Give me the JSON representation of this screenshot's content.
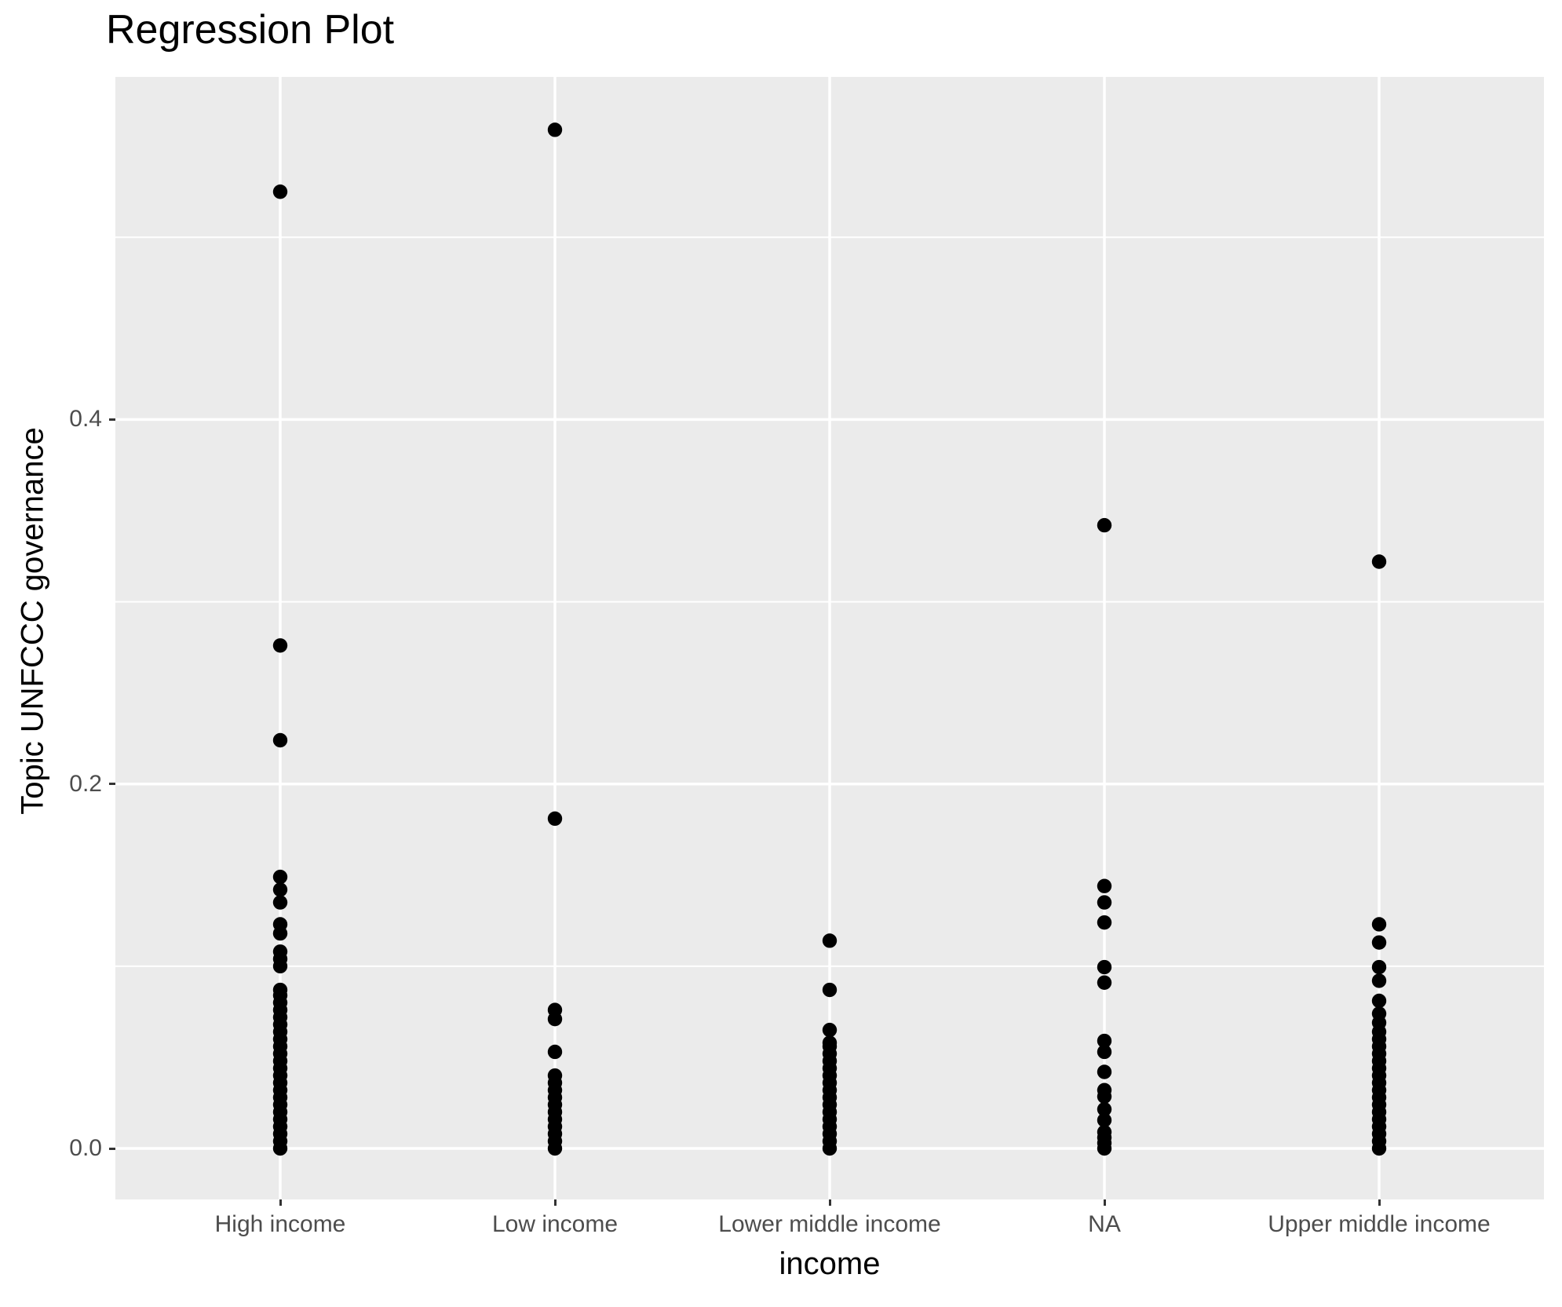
{
  "title": "Regression Plot",
  "chart_data": {
    "type": "scatter",
    "title": "Regression Plot",
    "xlabel": "income",
    "ylabel": "Topic UNFCCC governance",
    "categories": [
      "High income",
      "Low income",
      "Lower middle income",
      "NA",
      "Upper middle income"
    ],
    "y_axis": {
      "tick_labels": [
        "0.0",
        "0.2",
        "0.4"
      ],
      "tick_values": [
        0.0,
        0.2,
        0.4
      ],
      "minor_tick_values": [
        0.1,
        0.3,
        0.5
      ],
      "range": [
        -0.028,
        0.588
      ]
    },
    "legend_position": "none",
    "grid": "on",
    "series": [
      {
        "category": "High income",
        "values": [
          0,
          0.004,
          0.008,
          0.012,
          0.016,
          0.02,
          0.024,
          0.028,
          0.032,
          0.036,
          0.04,
          0.044,
          0.048,
          0.052,
          0.056,
          0.06,
          0.064,
          0.068,
          0.072,
          0.076,
          0.08,
          0.084,
          0.087,
          0.1,
          0.104,
          0.108,
          0.118,
          0.123,
          0.135,
          0.142,
          0.149,
          0.224,
          0.276,
          0.525
        ]
      },
      {
        "category": "Low income",
        "values": [
          0,
          0.004,
          0.008,
          0.012,
          0.016,
          0.02,
          0.024,
          0.028,
          0.032,
          0.036,
          0.04,
          0.053,
          0.071,
          0.076,
          0.181,
          0.559
        ]
      },
      {
        "category": "Lower middle income",
        "values": [
          0,
          0.004,
          0.008,
          0.012,
          0.016,
          0.02,
          0.024,
          0.028,
          0.032,
          0.036,
          0.04,
          0.044,
          0.048,
          0.052,
          0.056,
          0.058,
          0.065,
          0.087,
          0.114
        ]
      },
      {
        "category": "NA",
        "values": [
          0,
          0.003,
          0.006,
          0.009,
          0.0155,
          0.0215,
          0.0285,
          0.032,
          0.042,
          0.053,
          0.059,
          0.091,
          0.0995,
          0.124,
          0.135,
          0.144,
          0.342
        ]
      },
      {
        "category": "Upper middle income",
        "values": [
          0,
          0.004,
          0.008,
          0.012,
          0.016,
          0.02,
          0.024,
          0.028,
          0.032,
          0.036,
          0.04,
          0.044,
          0.048,
          0.052,
          0.056,
          0.06,
          0.064,
          0.069,
          0.074,
          0.081,
          0.092,
          0.0995,
          0.113,
          0.123,
          0.322
        ]
      }
    ],
    "style": {
      "panel_background": "#EBEBEB",
      "grid_color": "#FFFFFF",
      "point_color": "#000000",
      "tick_text_color": "#4D4D4D",
      "tick_mark_color": "#333333",
      "title_color": "#000000"
    }
  }
}
